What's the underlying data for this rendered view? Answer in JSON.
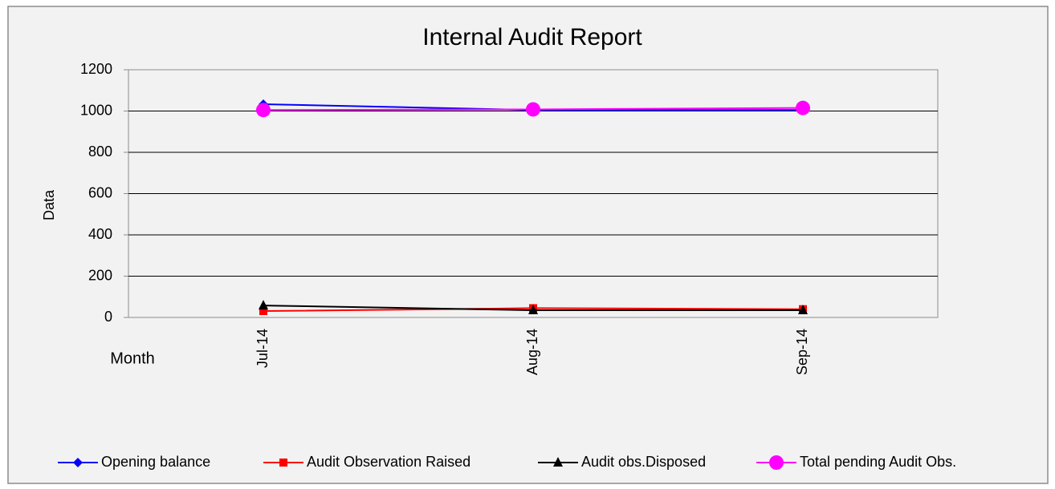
{
  "chart_data": {
    "type": "line",
    "title": "Internal Audit Report",
    "x_label": "Month",
    "y_label": "Data",
    "categories": [
      "Jul-14",
      "Aug-14",
      "Sep-14"
    ],
    "series": [
      {
        "name": "Opening balance",
        "color": "#0000ff",
        "marker": "diamond",
        "values": [
          1033,
          1005,
          1005
        ]
      },
      {
        "name": "Audit Observation Raised",
        "color": "#ff0000",
        "marker": "square",
        "values": [
          31,
          45,
          40
        ]
      },
      {
        "name": "Audit obs.Disposed",
        "color": "#000000",
        "marker": "triangle",
        "values": [
          58,
          35,
          35
        ]
      },
      {
        "name": "Total pending Audit Obs.",
        "color": "#ff00ff",
        "marker": "circle",
        "values": [
          1005,
          1008,
          1015
        ]
      }
    ],
    "ylim": [
      0,
      1200
    ],
    "yticks": [
      0,
      200,
      400,
      600,
      800,
      1000,
      1200
    ],
    "grid": true,
    "legend": "bottom"
  }
}
